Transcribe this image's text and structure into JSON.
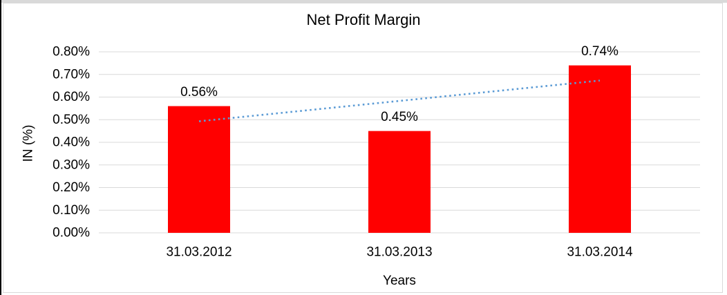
{
  "frame": {
    "border_color": "#d9d9d9",
    "top_band_color": "#d9d9d9",
    "left_accent_color": "#000000",
    "background_color": "#ffffff"
  },
  "chart_data": {
    "type": "bar",
    "title": "Net Profit Margin",
    "xlabel": "Years",
    "ylabel": "IN (%)",
    "categories": [
      "31.03.2012",
      "31.03.2013",
      "31.03.2014"
    ],
    "values": [
      0.56,
      0.45,
      0.74
    ],
    "bar_labels": [
      "0.56%",
      "0.45%",
      "0.74%"
    ],
    "bar_color": "#ff0000",
    "text_color": "#000000",
    "ylim": [
      0,
      0.8
    ],
    "ytick_step": 0.1,
    "ytick_labels": [
      "0.00%",
      "0.10%",
      "0.20%",
      "0.30%",
      "0.40%",
      "0.50%",
      "0.60%",
      "0.70%",
      "0.80%"
    ],
    "gridline_color": "#d9d9d9",
    "grid": "horizontal",
    "legend_position": "none",
    "trendline": {
      "type": "linear",
      "style": "dotted",
      "color": "#5b9bd5",
      "start_value": 0.493,
      "end_value": 0.673
    }
  }
}
